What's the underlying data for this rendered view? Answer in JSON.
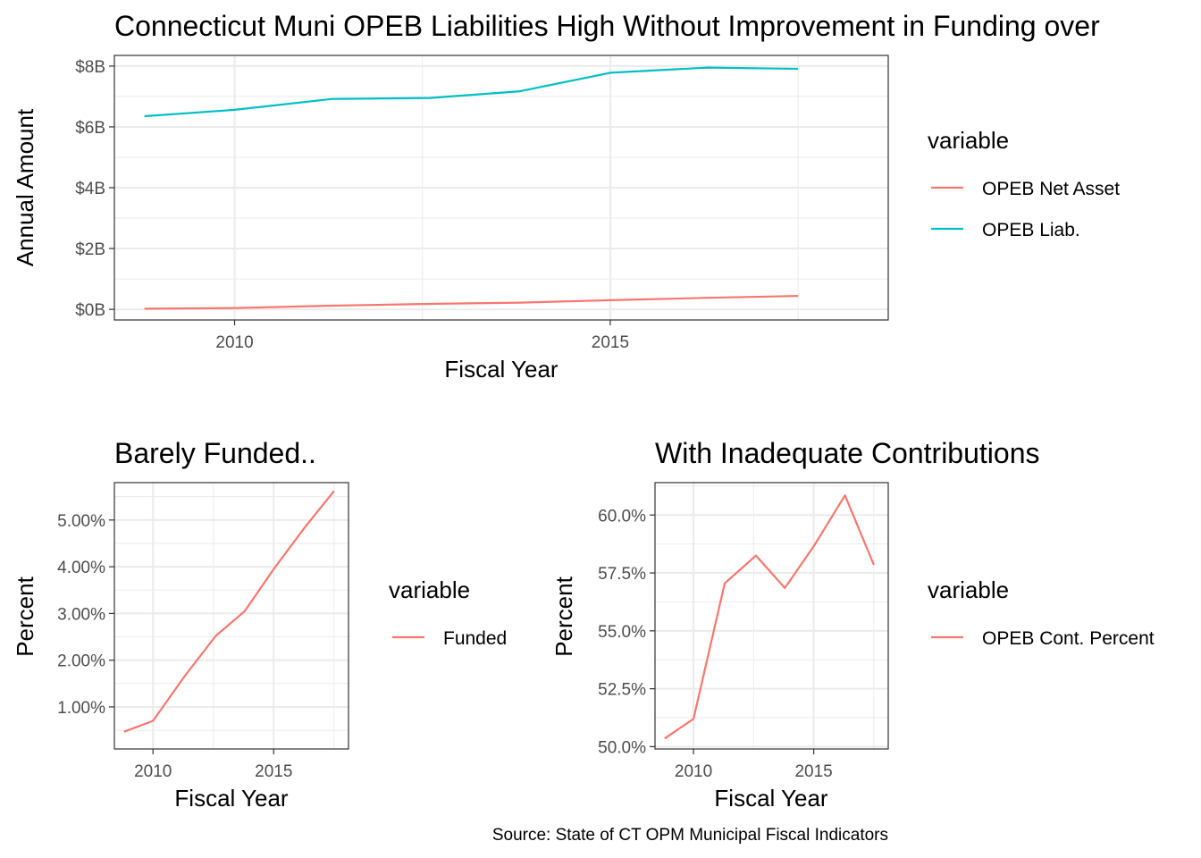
{
  "chart_data": [
    {
      "id": "top",
      "type": "line",
      "title": "Connecticut Muni OPEB Liabilities High Without Improvement in Funding over",
      "xlabel": "Fiscal Year",
      "ylabel": "Annual Amount",
      "xlim": [
        2008.4,
        2018.7
      ],
      "ylim": [
        -0.35,
        8.35
      ],
      "xticks": [
        2010,
        2015
      ],
      "xtick_labels": [
        "2010",
        "2015"
      ],
      "yticks": [
        0,
        2,
        4,
        6,
        8
      ],
      "ytick_labels": [
        "$0B",
        "$2B",
        "$4B",
        "$6B",
        "$8B"
      ],
      "grid": true,
      "legend": {
        "title": "variable",
        "position": "right",
        "entries": [
          "OPEB Net Asset",
          "OPEB Liab."
        ]
      },
      "series": [
        {
          "name": "OPEB Net Asset",
          "color": "#F8766D",
          "x": [
            2008.8,
            2010.0,
            2011.3,
            2012.6,
            2013.8,
            2015.0,
            2016.3,
            2017.5
          ],
          "y": [
            0.02,
            0.04,
            0.12,
            0.18,
            0.22,
            0.3,
            0.38,
            0.44
          ]
        },
        {
          "name": "OPEB Liab.",
          "color": "#00BFC4",
          "x": [
            2008.8,
            2010.0,
            2011.3,
            2012.6,
            2013.8,
            2015.0,
            2016.3,
            2017.5
          ],
          "y": [
            6.35,
            6.56,
            6.92,
            6.95,
            7.17,
            7.78,
            7.95,
            7.91
          ]
        }
      ]
    },
    {
      "id": "bl",
      "type": "line",
      "title": "Barely Funded..",
      "xlabel": "Fiscal Year",
      "ylabel": "Percent",
      "xlim": [
        2008.4,
        2018.1
      ],
      "ylim": [
        0.1,
        5.8
      ],
      "xticks": [
        2010,
        2015
      ],
      "xtick_labels": [
        "2010",
        "2015"
      ],
      "yticks": [
        1,
        2,
        3,
        4,
        5
      ],
      "ytick_labels": [
        "1.00%",
        "2.00%",
        "3.00%",
        "4.00%",
        "5.00%"
      ],
      "grid": true,
      "legend": {
        "title": "variable",
        "position": "right",
        "entries": [
          "Funded"
        ]
      },
      "series": [
        {
          "name": "Funded",
          "color": "#F8766D",
          "x": [
            2008.8,
            2010.0,
            2011.3,
            2012.6,
            2013.8,
            2015.0,
            2016.3,
            2017.5
          ],
          "y": [
            0.47,
            0.7,
            1.65,
            2.52,
            3.05,
            3.95,
            4.85,
            5.62
          ]
        }
      ]
    },
    {
      "id": "br",
      "type": "line",
      "title": "With Inadequate Contributions",
      "xlabel": "Fiscal Year",
      "ylabel": "Percent",
      "xlim": [
        2008.4,
        2018.1
      ],
      "ylim": [
        49.9,
        61.4
      ],
      "xticks": [
        2010,
        2015
      ],
      "xtick_labels": [
        "2010",
        "2015"
      ],
      "yticks": [
        50,
        52.5,
        55,
        57.5,
        60
      ],
      "ytick_labels": [
        "50.0%",
        "52.5%",
        "55.0%",
        "57.5%",
        "60.0%"
      ],
      "grid": true,
      "legend": {
        "title": "variable",
        "position": "right",
        "entries": [
          "OPEB Cont. Percent"
        ]
      },
      "series": [
        {
          "name": "OPEB Cont. Percent",
          "color": "#F8766D",
          "x": [
            2008.8,
            2010.0,
            2011.3,
            2012.6,
            2013.8,
            2015.0,
            2016.3,
            2017.5
          ],
          "y": [
            50.35,
            51.2,
            57.05,
            58.25,
            56.85,
            58.65,
            60.85,
            57.85
          ]
        }
      ]
    }
  ],
  "caption": "Source: State of CT OPM Municipal Fiscal Indicators"
}
